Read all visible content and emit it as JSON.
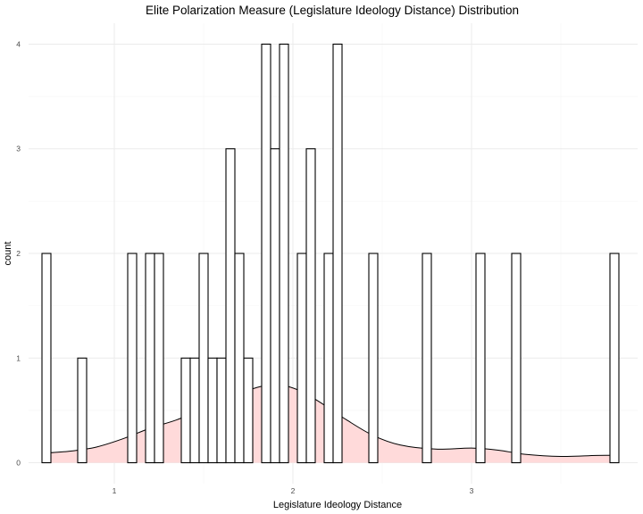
{
  "chart_data": {
    "type": "histogram",
    "title": "Elite Polarization Measure (Legislature Ideology Distance) Distribution",
    "xlabel": "Legislature Ideology Distance",
    "ylabel": "count",
    "xlim": [
      0.52,
      3.93
    ],
    "ylim": [
      -0.2,
      4.2
    ],
    "x_ticks": [
      1,
      2,
      3
    ],
    "y_ticks": [
      0,
      1,
      2,
      3,
      4
    ],
    "grid": true,
    "bins": [
      {
        "x0": 0.595,
        "x1": 0.645,
        "count": 2
      },
      {
        "x0": 0.795,
        "x1": 0.845,
        "count": 1
      },
      {
        "x0": 1.075,
        "x1": 1.125,
        "count": 2
      },
      {
        "x0": 1.175,
        "x1": 1.225,
        "count": 2
      },
      {
        "x0": 1.225,
        "x1": 1.275,
        "count": 2
      },
      {
        "x0": 1.375,
        "x1": 1.425,
        "count": 1
      },
      {
        "x0": 1.425,
        "x1": 1.475,
        "count": 1
      },
      {
        "x0": 1.475,
        "x1": 1.525,
        "count": 2
      },
      {
        "x0": 1.525,
        "x1": 1.575,
        "count": 1
      },
      {
        "x0": 1.575,
        "x1": 1.625,
        "count": 1
      },
      {
        "x0": 1.625,
        "x1": 1.675,
        "count": 3
      },
      {
        "x0": 1.675,
        "x1": 1.725,
        "count": 2
      },
      {
        "x0": 1.725,
        "x1": 1.775,
        "count": 1
      },
      {
        "x0": 1.825,
        "x1": 1.875,
        "count": 4
      },
      {
        "x0": 1.875,
        "x1": 1.925,
        "count": 3
      },
      {
        "x0": 1.925,
        "x1": 1.975,
        "count": 4
      },
      {
        "x0": 2.025,
        "x1": 2.075,
        "count": 2
      },
      {
        "x0": 2.075,
        "x1": 2.125,
        "count": 3
      },
      {
        "x0": 2.175,
        "x1": 2.225,
        "count": 2
      },
      {
        "x0": 2.225,
        "x1": 2.275,
        "count": 4
      },
      {
        "x0": 2.425,
        "x1": 2.475,
        "count": 2
      },
      {
        "x0": 2.725,
        "x1": 2.775,
        "count": 2
      },
      {
        "x0": 3.025,
        "x1": 3.075,
        "count": 2
      },
      {
        "x0": 3.225,
        "x1": 3.275,
        "count": 2
      },
      {
        "x0": 3.775,
        "x1": 3.825,
        "count": 2
      }
    ],
    "density_curve": {
      "color": "#ffdada",
      "x": [
        0.595,
        0.75,
        0.9,
        1.05,
        1.2,
        1.35,
        1.5,
        1.65,
        1.8,
        1.9,
        1.95,
        2.05,
        2.15,
        2.3,
        2.45,
        2.6,
        2.8,
        3.0,
        3.15,
        3.3,
        3.5,
        3.7,
        3.825
      ],
      "y": [
        0.09,
        0.11,
        0.15,
        0.23,
        0.33,
        0.41,
        0.52,
        0.63,
        0.72,
        0.75,
        0.74,
        0.68,
        0.58,
        0.41,
        0.26,
        0.17,
        0.13,
        0.14,
        0.12,
        0.08,
        0.06,
        0.07,
        0.07
      ]
    }
  }
}
